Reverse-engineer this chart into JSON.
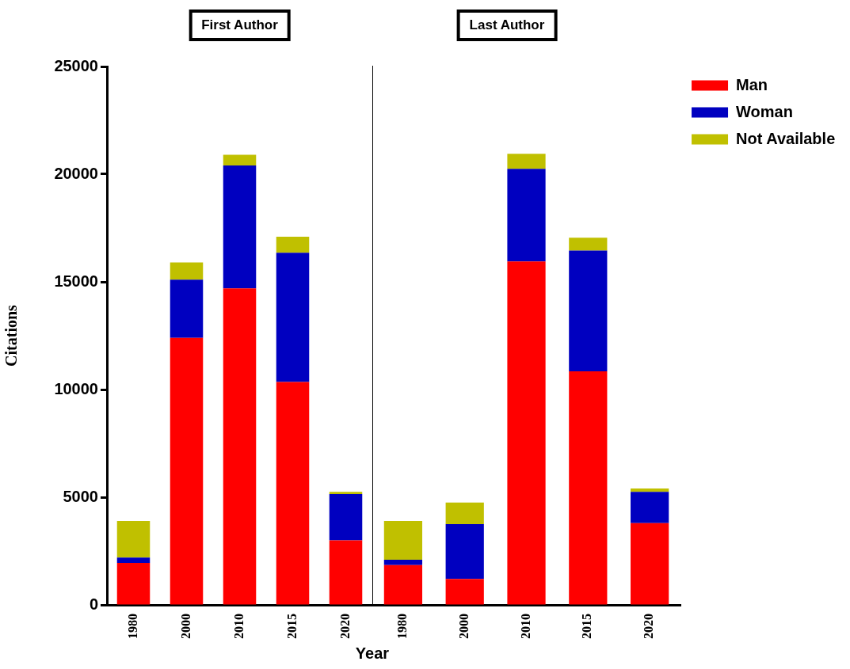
{
  "chart_data": [
    {
      "type": "bar",
      "title": "First Author",
      "ylabel": "Citations",
      "xlabel": "Year",
      "stacked": true,
      "categories": [
        "1980",
        "2000",
        "2010",
        "2015",
        "2020"
      ],
      "ylim": [
        0,
        25000
      ],
      "yticks": [
        0,
        5000,
        10000,
        15000,
        20000,
        25000
      ],
      "grid": false,
      "legend": false,
      "series": [
        {
          "color": "#ff0000",
          "values": [
            1950,
            12400,
            14700,
            10350,
            3000
          ]
        },
        {
          "color": "#0000c0",
          "values": [
            250,
            2700,
            5700,
            6000,
            2150
          ]
        },
        {
          "color": "#c0c000",
          "values": [
            1700,
            800,
            500,
            750,
            100
          ]
        }
      ]
    },
    {
      "type": "bar",
      "title": "Last Author",
      "stacked": true,
      "categories": [
        "1980",
        "2000",
        "2010",
        "2015",
        "2020"
      ],
      "ylim": [
        0,
        25000
      ],
      "yticks": [
        0,
        5000,
        10000,
        15000,
        20000,
        25000
      ],
      "grid": false,
      "legend": "right",
      "tick_labels": "x",
      "series": [
        {
          "name": "Man",
          "color": "#ff0000",
          "values": [
            1850,
            1200,
            15950,
            10850,
            3800
          ]
        },
        {
          "name": "Woman",
          "color": "#0000c0",
          "values": [
            250,
            2550,
            4300,
            5600,
            1450
          ]
        },
        {
          "name": "Not Available",
          "color": "#c0c000",
          "values": [
            1800,
            1000,
            700,
            600,
            150
          ]
        }
      ]
    }
  ]
}
